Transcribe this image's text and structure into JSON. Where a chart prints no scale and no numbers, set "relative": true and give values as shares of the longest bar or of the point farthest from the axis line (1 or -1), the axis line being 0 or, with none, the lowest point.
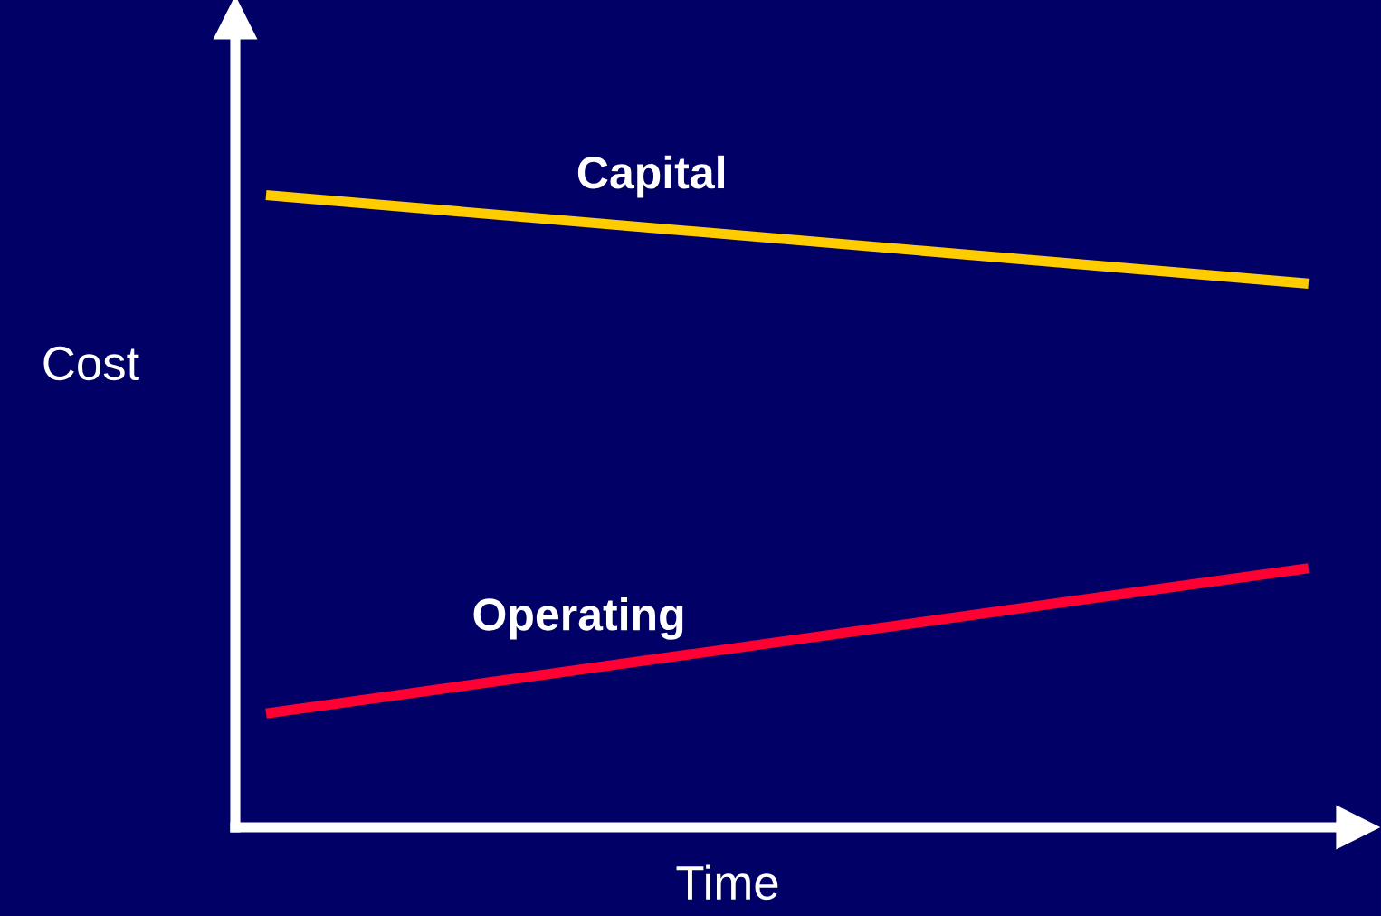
{
  "chart_data": {
    "type": "line",
    "relative": true,
    "xlabel": "Time",
    "ylabel": "Cost",
    "categories": [
      null,
      null
    ],
    "legend": false,
    "series": [
      {
        "name": "Capital",
        "color": "#ffcc00",
        "values": [
          1,
          0.86
        ]
      },
      {
        "name": "Operating",
        "color": "#ff0033",
        "values": [
          0.18,
          0.41
        ]
      }
    ]
  }
}
